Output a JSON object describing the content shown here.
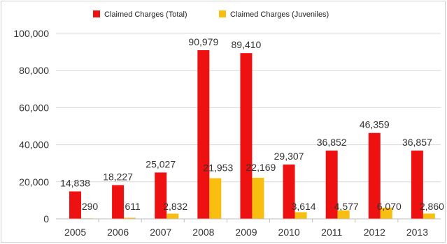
{
  "chart_data": {
    "type": "bar",
    "categories": [
      "2005",
      "2006",
      "2007",
      "2008",
      "2009",
      "2010",
      "2011",
      "2012",
      "2013"
    ],
    "series": [
      {
        "name": "Claimed Charges (Total)",
        "color": "#ee1111",
        "values": [
          14838,
          18227,
          25027,
          90979,
          89410,
          29307,
          36852,
          46359,
          36857
        ],
        "labels": [
          "14,838",
          "18,227",
          "25,027",
          "90,979",
          "89,410",
          "29,307",
          "36,852",
          "46,359",
          "36,857"
        ]
      },
      {
        "name": "Claimed Charges (Juveniles)",
        "color": "#f8bf10",
        "values": [
          290,
          611,
          2832,
          21953,
          22169,
          3614,
          4577,
          6070,
          2860
        ],
        "labels": [
          "290",
          "611",
          "2,832",
          "21,953",
          "22,169",
          "3,614",
          "4,577",
          "6,070",
          "2,860"
        ]
      }
    ],
    "yticks": [
      "0",
      "20,000",
      "40,000",
      "60,000",
      "80,000",
      "100,000"
    ],
    "ylim": [
      0,
      100000
    ],
    "legend_position": "top-center",
    "grid": true,
    "title": "",
    "xlabel": "",
    "ylabel": ""
  }
}
